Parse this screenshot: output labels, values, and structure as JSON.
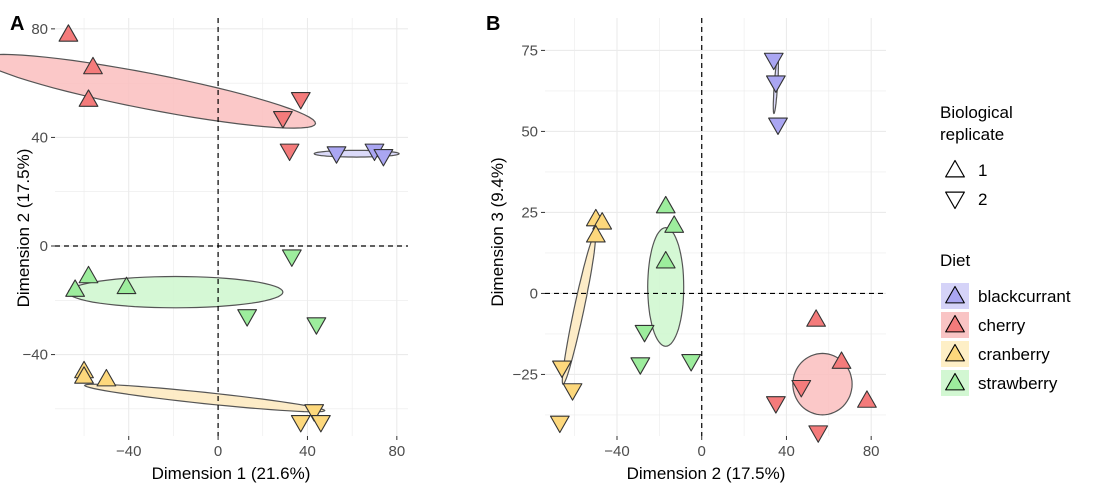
{
  "chart_data": [
    {
      "type": "scatter",
      "panel_label": "A",
      "xlabel": "Dimension 1 (21.6%)",
      "ylabel": "Dimension 2 (17.5%)",
      "xlim": [
        -73,
        85
      ],
      "ylim": [
        -70,
        84
      ],
      "xticks": [
        -40,
        0,
        40,
        80
      ],
      "yticks": [
        -40,
        0,
        40,
        80
      ],
      "tick_labels_x": [
        "−40",
        "0",
        "40",
        "80"
      ],
      "tick_labels_y": [
        "−40",
        "0",
        "40",
        "80"
      ],
      "reference_lines": {
        "x": 0,
        "y": 0,
        "style": "dashed"
      },
      "series": [
        {
          "name": "blackcurrant",
          "points": [
            {
              "x": 53,
              "y": 34,
              "replicate": "2"
            },
            {
              "x": 70,
              "y": 35,
              "replicate": "2"
            },
            {
              "x": 74,
              "y": 33,
              "replicate": "2"
            }
          ]
        },
        {
          "name": "cherry",
          "points": [
            {
              "x": -67,
              "y": 78,
              "replicate": "1"
            },
            {
              "x": -56,
              "y": 66,
              "replicate": "1"
            },
            {
              "x": -58,
              "y": 54,
              "replicate": "1"
            },
            {
              "x": 37,
              "y": 54,
              "replicate": "2"
            },
            {
              "x": 29,
              "y": 47,
              "replicate": "2"
            },
            {
              "x": 32,
              "y": 35,
              "replicate": "2"
            }
          ]
        },
        {
          "name": "cranberry",
          "points": [
            {
              "x": -60,
              "y": -46,
              "replicate": "1"
            },
            {
              "x": -60,
              "y": -48,
              "replicate": "1"
            },
            {
              "x": -50,
              "y": -49,
              "replicate": "1"
            },
            {
              "x": 43,
              "y": -61,
              "replicate": "2"
            },
            {
              "x": 37,
              "y": -65,
              "replicate": "2"
            },
            {
              "x": 46,
              "y": -65,
              "replicate": "2"
            }
          ]
        },
        {
          "name": "strawberry",
          "points": [
            {
              "x": -64,
              "y": -16,
              "replicate": "1"
            },
            {
              "x": -58,
              "y": -11,
              "replicate": "1"
            },
            {
              "x": -41,
              "y": -15,
              "replicate": "1"
            },
            {
              "x": 33,
              "y": -4,
              "replicate": "2"
            },
            {
              "x": 13,
              "y": -26,
              "replicate": "2"
            },
            {
              "x": 44,
              "y": -29,
              "replicate": "2"
            }
          ]
        }
      ],
      "ellipses": [
        {
          "series": "cherry",
          "center": [
            -31,
            57
          ],
          "semi_axes": [
            76,
            8
          ],
          "angle_deg": -11
        },
        {
          "series": "blackcurrant",
          "center": [
            62,
            34
          ],
          "semi_axes": [
            19,
            1.5
          ],
          "angle_deg": 0
        },
        {
          "series": "strawberry",
          "center": [
            -19,
            -17
          ],
          "semi_axes": [
            48,
            7
          ],
          "angle_deg": 0
        },
        {
          "series": "cranberry",
          "center": [
            -6,
            -56
          ],
          "semi_axes": [
            54,
            2.5
          ],
          "angle_deg": -6
        }
      ]
    },
    {
      "type": "scatter",
      "panel_label": "B",
      "xlabel": "Dimension 2 (17.5%)",
      "ylabel": "Dimension 3 (9.4%)",
      "xlim": [
        -74,
        87
      ],
      "ylim": [
        -44,
        85
      ],
      "xticks": [
        -40,
        0,
        40,
        80
      ],
      "yticks": [
        -25,
        0,
        25,
        50,
        75
      ],
      "tick_labels_x": [
        "−40",
        "0",
        "40",
        "80"
      ],
      "tick_labels_y": [
        "−25",
        "0",
        "25",
        "50",
        "75"
      ],
      "reference_lines": {
        "x": 0,
        "y": 0,
        "style": "dashed"
      },
      "series": [
        {
          "name": "blackcurrant",
          "points": [
            {
              "x": 34,
              "y": 72,
              "replicate": "2"
            },
            {
              "x": 35,
              "y": 65,
              "replicate": "2"
            },
            {
              "x": 36,
              "y": 52,
              "replicate": "2"
            }
          ]
        },
        {
          "name": "cherry",
          "points": [
            {
              "x": 54,
              "y": -8,
              "replicate": "1"
            },
            {
              "x": 66,
              "y": -21,
              "replicate": "1"
            },
            {
              "x": 78,
              "y": -33,
              "replicate": "1"
            },
            {
              "x": 47,
              "y": -29,
              "replicate": "2"
            },
            {
              "x": 35,
              "y": -34,
              "replicate": "2"
            },
            {
              "x": 55,
              "y": -43,
              "replicate": "2"
            }
          ]
        },
        {
          "name": "cranberry",
          "points": [
            {
              "x": -50,
              "y": 23,
              "replicate": "1"
            },
            {
              "x": -47,
              "y": 22,
              "replicate": "1"
            },
            {
              "x": -50,
              "y": 18,
              "replicate": "1"
            },
            {
              "x": -66,
              "y": -23,
              "replicate": "2"
            },
            {
              "x": -61,
              "y": -30,
              "replicate": "2"
            },
            {
              "x": -67,
              "y": -40,
              "replicate": "2"
            }
          ]
        },
        {
          "name": "strawberry",
          "points": [
            {
              "x": -17,
              "y": 27,
              "replicate": "1"
            },
            {
              "x": -13,
              "y": 21,
              "replicate": "1"
            },
            {
              "x": -17,
              "y": 10,
              "replicate": "1"
            },
            {
              "x": -27,
              "y": -12,
              "replicate": "2"
            },
            {
              "x": -29,
              "y": -22,
              "replicate": "2"
            },
            {
              "x": -5,
              "y": -21,
              "replicate": "2"
            }
          ]
        }
      ],
      "ellipses": [
        {
          "series": "blackcurrant",
          "center": [
            35,
            64
          ],
          "semi_axes": [
            13,
            0.8
          ],
          "angle_deg": 86
        },
        {
          "series": "strawberry",
          "center": [
            -17,
            2
          ],
          "semi_axes": [
            28,
            8.5
          ],
          "angle_deg": 90
        },
        {
          "series": "cherry",
          "center": [
            57,
            -28
          ],
          "semi_axes": [
            14.5,
            14
          ],
          "angle_deg": 90
        },
        {
          "series": "cranberry",
          "center": [
            -58,
            -5
          ],
          "semi_axes": [
            36,
            2.3
          ],
          "angle_deg": 78
        }
      ]
    }
  ],
  "legend": {
    "placement": "right",
    "shape_title": "Biological\nreplicate",
    "shapes": [
      {
        "label": "1",
        "shape": "triangle-up"
      },
      {
        "label": "2",
        "shape": "triangle-down"
      }
    ],
    "color_title": "Diet",
    "colors": [
      {
        "label": "blackcurrant",
        "fill": "#aaa6f2",
        "bg": "#d5d3f8"
      },
      {
        "label": "cherry",
        "fill": "#f47b7b",
        "bg": "#f9c4c4"
      },
      {
        "label": "cranberry",
        "fill": "#fdd87c",
        "bg": "#feefc6"
      },
      {
        "label": "strawberry",
        "fill": "#9ded9d",
        "bg": "#d2f7d2"
      }
    ]
  },
  "colors": {
    "blackcurrant": {
      "point": "#aaa6f2",
      "ellipse": "#d5d3f8"
    },
    "cherry": {
      "point": "#f47b7b",
      "ellipse": "#fabebe"
    },
    "cranberry": {
      "point": "#fdd87c",
      "ellipse": "#fde9bd"
    },
    "strawberry": {
      "point": "#9ded9d",
      "ellipse": "#cef7ce"
    },
    "grid": "#ebebeb",
    "stroke": "#333333",
    "ellipse_stroke": "#555555"
  }
}
